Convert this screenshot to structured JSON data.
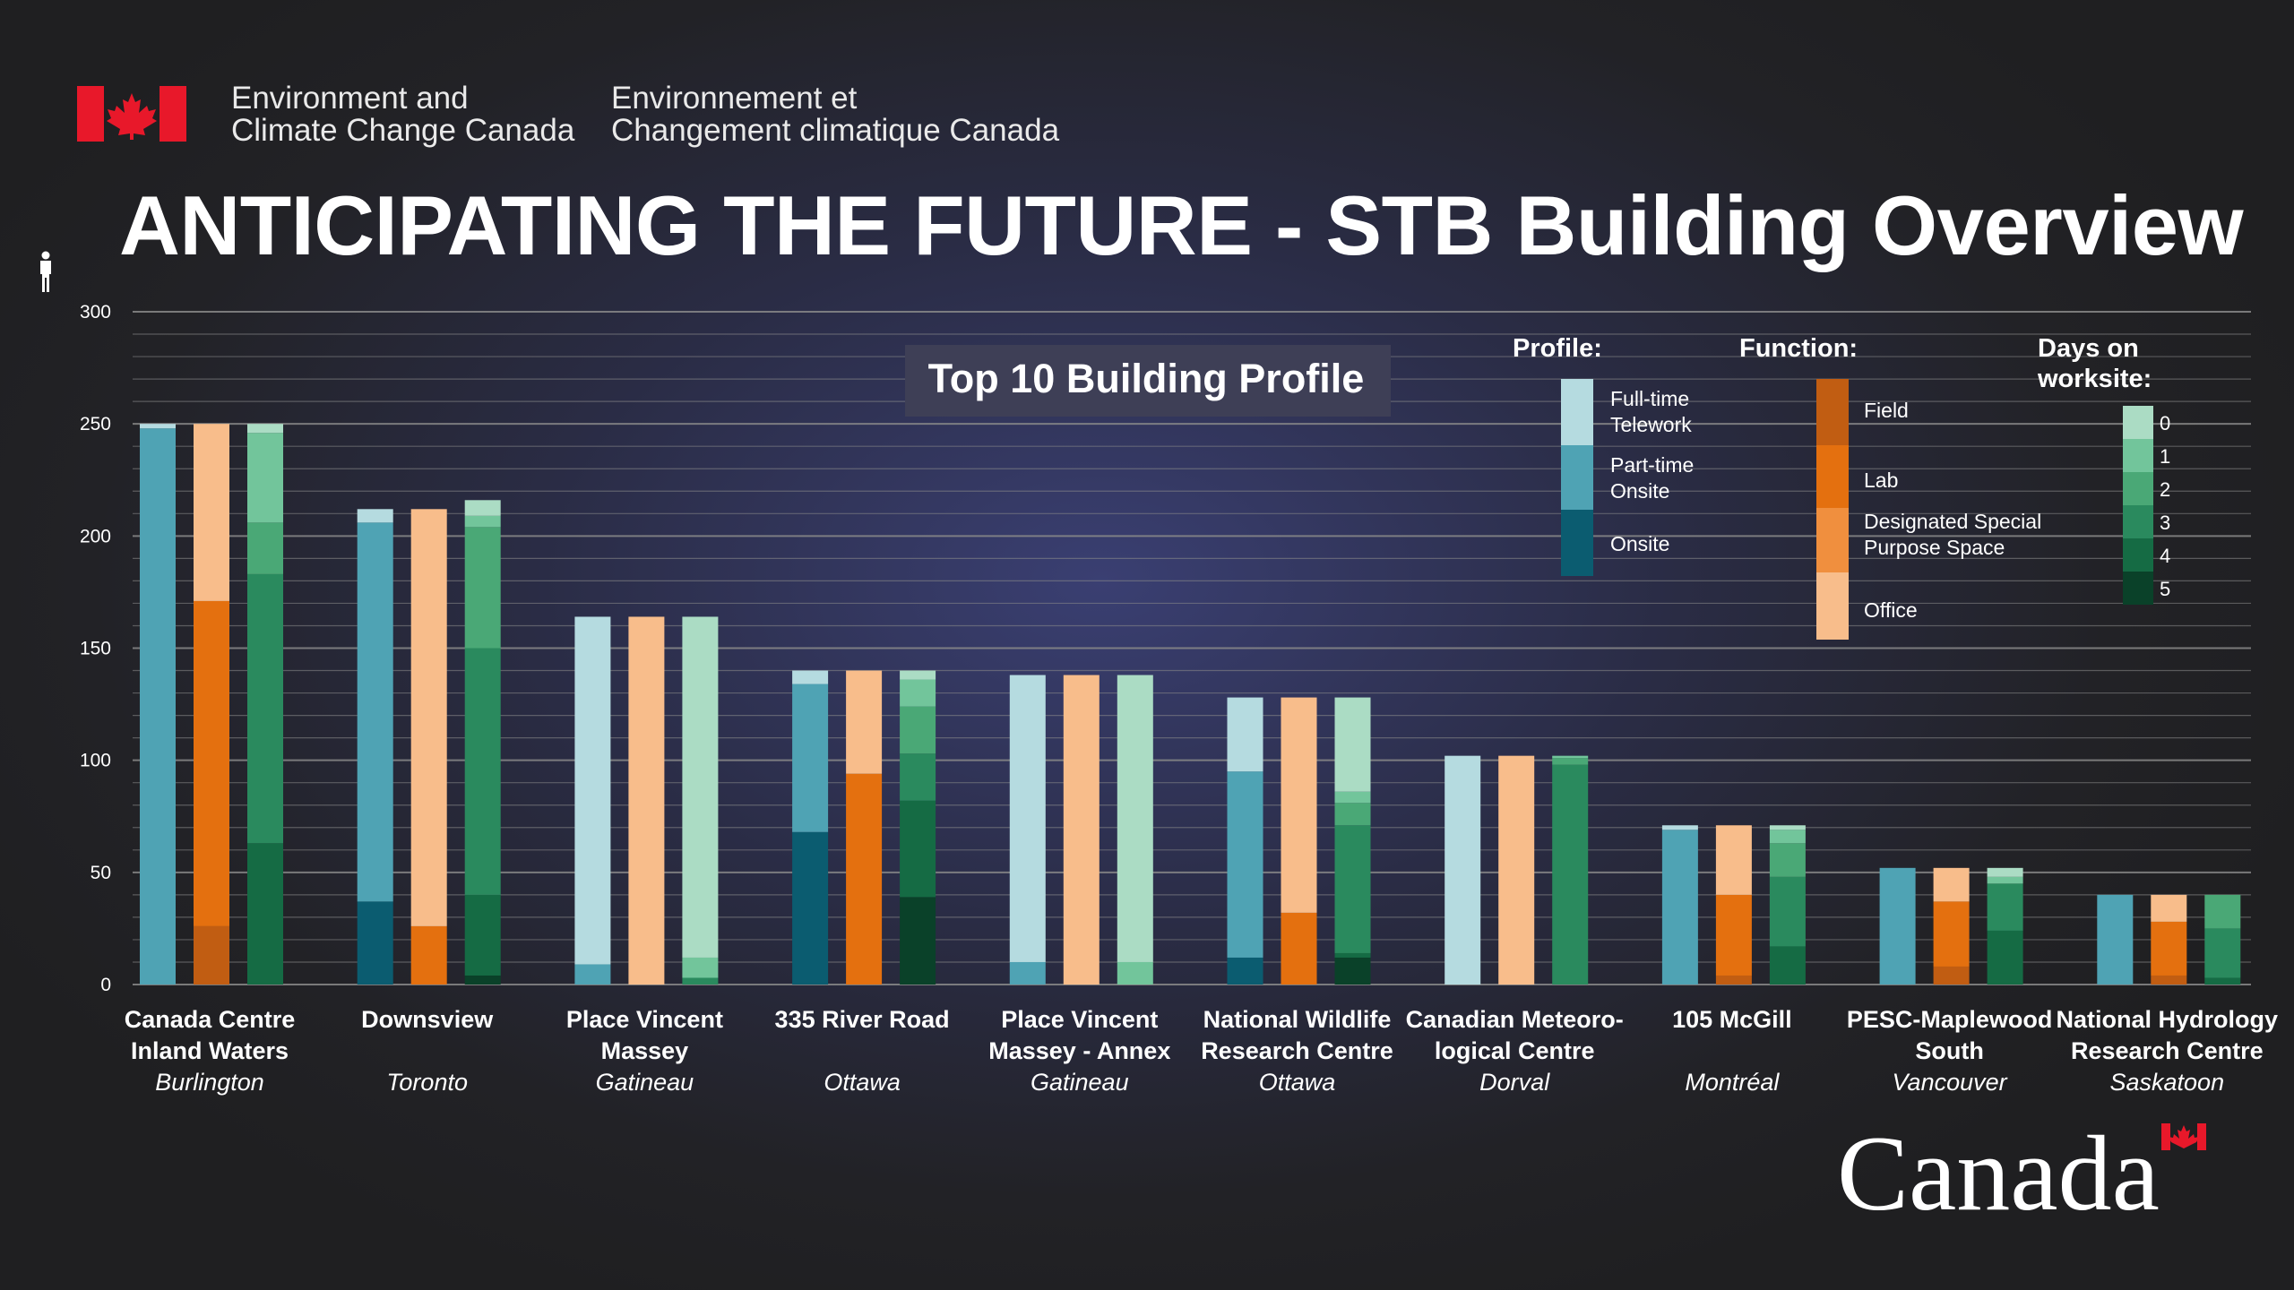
{
  "header": {
    "dept_en_line1": "Environment and",
    "dept_en_line2": "Climate Change Canada",
    "dept_fr_line1": "Environnement et",
    "dept_fr_line2": "Changement climatique Canada"
  },
  "title": "ANTICIPATING THE FUTURE - STB Building Overview",
  "icons": {
    "y_axis_unit": "person-icon",
    "flag": "canada-flag-icon"
  },
  "wordmark": "Canada",
  "colors": {
    "profile": [
      "#b5dbe0",
      "#4fa3b4",
      "#0b5c70"
    ],
    "function": [
      "#c15d12",
      "#e4700f",
      "#f08f3e",
      "#f8bd8b"
    ],
    "days": [
      "#abdcc4",
      "#72c59b",
      "#4aa876",
      "#2a8a5e",
      "#156b44",
      "#0a4129"
    ],
    "grid": "#8a8a8a",
    "panel": "#3e3f56"
  },
  "chart_data": {
    "type": "bar",
    "subtitle": "Top 10 Building Profile",
    "ylim": [
      0,
      300
    ],
    "yticks": [
      0,
      50,
      100,
      150,
      200,
      250,
      300
    ],
    "grid": true,
    "legend_placement": "top-right",
    "legend": {
      "profile": {
        "title": "Profile:",
        "items": [
          "Full-time Telework",
          "Part-time Onsite",
          "Onsite"
        ]
      },
      "function": {
        "title": "Function:",
        "items": [
          "Field",
          "Lab",
          "Designated Special Purpose Space",
          "Office"
        ]
      },
      "days": {
        "title": "Days on worksite:",
        "items": [
          "0",
          "1",
          "2",
          "3",
          "4",
          "5"
        ]
      }
    },
    "categories": [
      {
        "name": "Canada Centre Inland Waters",
        "city": "Burlington"
      },
      {
        "name": "Downsview",
        "city": "Toronto"
      },
      {
        "name": "Place Vincent Massey",
        "city": "Gatineau"
      },
      {
        "name": "335 River Road",
        "city": "Ottawa"
      },
      {
        "name": "Place Vincent Massey - Annex",
        "city": "Gatineau"
      },
      {
        "name": "National Wildlife Research Centre",
        "city": "Ottawa"
      },
      {
        "name": "Canadian Meteoro-logical Centre",
        "city": "Dorval"
      },
      {
        "name": "105 McGill",
        "city": "Montréal"
      },
      {
        "name": "PESC-Maplewood South",
        "city": "Vancouver"
      },
      {
        "name": "National Hydrology Research Centre",
        "city": "Saskatoon"
      }
    ],
    "label_lines": [
      [
        "Canada Centre",
        "Inland Waters"
      ],
      [
        "Downsview"
      ],
      [
        "Place Vincent",
        "Massey"
      ],
      [
        "335 River Road"
      ],
      [
        "Place Vincent",
        "Massey - Annex"
      ],
      [
        "National Wildlife",
        "Research Centre"
      ],
      [
        "Canadian Meteoro-",
        "logical Centre"
      ],
      [
        "105 McGill"
      ],
      [
        "PESC-Maplewood",
        "South"
      ],
      [
        "National Hydrology",
        "Research Centre"
      ]
    ],
    "profile_series": [
      {
        "name": "Onsite",
        "values": [
          0,
          37,
          0,
          68,
          0,
          12,
          0,
          0,
          0,
          0
        ]
      },
      {
        "name": "Part-time Onsite",
        "values": [
          248,
          169,
          9,
          66,
          10,
          83,
          0,
          69,
          52,
          40
        ]
      },
      {
        "name": "Full-time Telework",
        "values": [
          2,
          6,
          155,
          6,
          128,
          33,
          102,
          2,
          0,
          0
        ]
      }
    ],
    "function_series": [
      {
        "name": "Field",
        "values": [
          26,
          0,
          0,
          0,
          0,
          0,
          0,
          4,
          8,
          4
        ]
      },
      {
        "name": "Lab",
        "values": [
          145,
          26,
          0,
          94,
          0,
          32,
          0,
          36,
          29,
          24
        ]
      },
      {
        "name": "Designated Special Purpose Space",
        "values": [
          0,
          0,
          0,
          0,
          0,
          0,
          0,
          0,
          0,
          0
        ]
      },
      {
        "name": "Office",
        "values": [
          79,
          186,
          164,
          46,
          138,
          96,
          102,
          31,
          15,
          12
        ]
      }
    ],
    "days_series": [
      {
        "name": "5",
        "values": [
          0,
          4,
          0,
          39,
          0,
          12,
          0,
          0,
          0,
          0
        ]
      },
      {
        "name": "4",
        "values": [
          63,
          36,
          0,
          43,
          0,
          2,
          0,
          17,
          24,
          3
        ]
      },
      {
        "name": "3",
        "values": [
          120,
          110,
          3,
          21,
          0,
          57,
          98,
          31,
          21,
          22
        ]
      },
      {
        "name": "2",
        "values": [
          23,
          54,
          0,
          21,
          0,
          10,
          3,
          15,
          0,
          15
        ]
      },
      {
        "name": "1",
        "values": [
          40,
          5,
          9,
          12,
          10,
          5,
          1,
          6,
          3,
          0
        ]
      },
      {
        "name": "0",
        "values": [
          4,
          7,
          152,
          4,
          128,
          42,
          0,
          2,
          4,
          0
        ]
      }
    ]
  }
}
